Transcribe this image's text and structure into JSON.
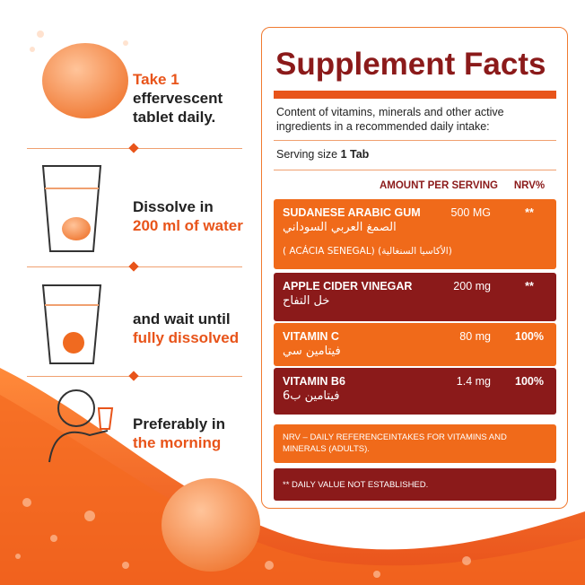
{
  "steps": [
    {
      "lines": [
        "Take 1",
        "effervescent",
        "tablet daily."
      ]
    },
    {
      "lines": [
        "Dissolve in",
        "200 ml of water"
      ]
    },
    {
      "lines": [
        "and wait until",
        "fully dissolved"
      ]
    },
    {
      "lines": [
        "Preferably in",
        "the morning"
      ]
    }
  ],
  "facts": {
    "title": "Supplement Facts",
    "intro": "Content of vitamins, minerals and other active ingredients in a recommended daily intake:",
    "serving_label": "Serving size",
    "serving_value": "1 Tab",
    "header": {
      "amount": "AMOUNT PER SERVING",
      "nrv": "NRV%"
    },
    "rows": [
      {
        "name": "SUDANESE ARABIC GUM",
        "arabic": "الصمغ العربي السوداني",
        "extra": "( ACÁCIA SENEGAL) (الأكاسيا السنغالية)",
        "amount": "500 MG",
        "nrv": "**"
      },
      {
        "name": "APPLE CIDER VINEGAR",
        "arabic": "خل التفاح",
        "amount": "200 mg",
        "nrv": "**"
      },
      {
        "name": "VITAMIN C",
        "arabic": "فيتامين سي",
        "amount": "80 mg",
        "nrv": "100%"
      },
      {
        "name": "VITAMIN B6",
        "arabic": "فيتامين ب6",
        "amount": "1.4 mg",
        "nrv": "100%"
      }
    ],
    "notes": [
      "NRV – DAILY REFERENCEINTAKES FOR VITAMINS AND MINERALS (ADULTS).",
      "** DAILY VALUE NOT ESTABLISHED."
    ]
  }
}
